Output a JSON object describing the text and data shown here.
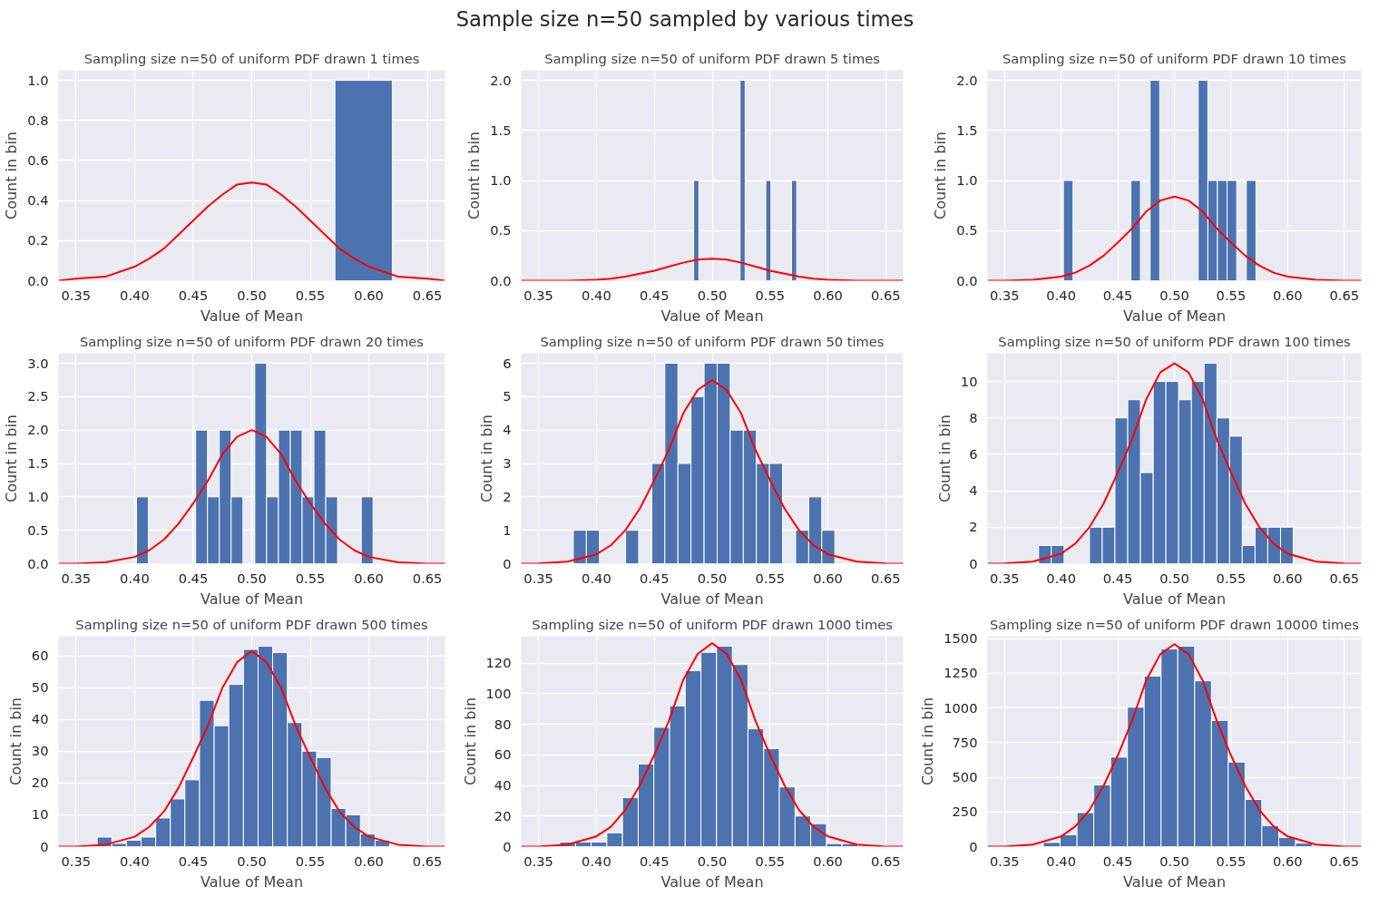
{
  "chart_data": [
    {
      "type": "other",
      "title": "Sample size n=50 sampled by various times"
    },
    {
      "type": "histogram",
      "title": "Sampling size n=50 of uniform PDF drawn 1 times",
      "xlabel": "Value of Mean",
      "ylabel": "Count in bin",
      "xlim": [
        0.335,
        0.665
      ],
      "ylim": [
        0,
        1.05
      ],
      "xticks": [
        {
          "value": 0.35,
          "label": "0.35"
        },
        {
          "value": 0.4,
          "label": "0.40"
        },
        {
          "value": 0.45,
          "label": "0.45"
        },
        {
          "value": 0.5,
          "label": "0.50"
        },
        {
          "value": 0.55,
          "label": "0.55"
        },
        {
          "value": 0.6,
          "label": "0.60"
        },
        {
          "value": 0.65,
          "label": "0.65"
        }
      ],
      "yticks": [
        {
          "value": 0,
          "label": "0.0"
        },
        {
          "value": 0.2,
          "label": "0.2"
        },
        {
          "value": 0.4,
          "label": "0.4"
        },
        {
          "value": 0.6,
          "label": "0.6"
        },
        {
          "value": 0.8,
          "label": "0.8"
        },
        {
          "value": 1,
          "label": "1.0"
        }
      ],
      "grid": true,
      "bins": [
        0.571,
        0.62
      ],
      "series": [
        {
          "type": "histogram",
          "color": "#4c72b0",
          "values": [
            1
          ]
        },
        {
          "type": "line",
          "color": "#ff0000",
          "x": [
            0.335,
            0.35,
            0.375,
            0.4,
            0.4125,
            0.425,
            0.4375,
            0.45,
            0.4625,
            0.475,
            0.4875,
            0.5,
            0.5125,
            0.525,
            0.5375,
            0.55,
            0.5625,
            0.575,
            0.5875,
            0.6,
            0.625,
            0.65,
            0.665
          ],
          "values": [
            0,
            0.01,
            0.02,
            0.07,
            0.11,
            0.16,
            0.23,
            0.3,
            0.37,
            0.43,
            0.48,
            0.49,
            0.48,
            0.43,
            0.37,
            0.3,
            0.23,
            0.16,
            0.11,
            0.07,
            0.02,
            0.01,
            0
          ]
        }
      ]
    },
    {
      "type": "histogram",
      "title": "Sampling size n=50 of uniform PDF drawn 5 times",
      "xlabel": "Value of Mean",
      "ylabel": "Count in bin",
      "xlim": [
        0.335,
        0.665
      ],
      "ylim": [
        0,
        2.1
      ],
      "xticks": [
        {
          "value": 0.35,
          "label": "0.35"
        },
        {
          "value": 0.4,
          "label": "0.40"
        },
        {
          "value": 0.45,
          "label": "0.45"
        },
        {
          "value": 0.5,
          "label": "0.50"
        },
        {
          "value": 0.55,
          "label": "0.55"
        },
        {
          "value": 0.6,
          "label": "0.60"
        },
        {
          "value": 0.65,
          "label": "0.65"
        }
      ],
      "yticks": [
        {
          "value": 0,
          "label": "0.0"
        },
        {
          "value": 0.5,
          "label": "0.5"
        },
        {
          "value": 1,
          "label": "1.0"
        },
        {
          "value": 1.5,
          "label": "1.5"
        },
        {
          "value": 2,
          "label": "2.0"
        }
      ],
      "grid": true,
      "bins": [
        0.484,
        0.4885,
        0.4929,
        0.4974,
        0.5018,
        0.5063,
        0.5107,
        0.5152,
        0.5196,
        0.5241,
        0.5285,
        0.533,
        0.5374,
        0.5419,
        0.5463,
        0.5508,
        0.5552,
        0.5597,
        0.5641,
        0.5686,
        0.573
      ],
      "series": [
        {
          "type": "histogram",
          "color": "#4c72b0",
          "values": [
            1,
            0,
            0,
            0,
            0,
            0,
            0,
            0,
            0,
            2,
            0,
            0,
            0,
            0,
            1,
            0,
            0,
            0,
            0,
            1
          ]
        },
        {
          "type": "line",
          "color": "#ff0000",
          "x": [
            0.335,
            0.35,
            0.375,
            0.4,
            0.4125,
            0.425,
            0.4375,
            0.45,
            0.4625,
            0.475,
            0.4875,
            0.5,
            0.5125,
            0.525,
            0.5375,
            0.55,
            0.5625,
            0.575,
            0.5875,
            0.6,
            0.625,
            0.65,
            0.665
          ],
          "values": [
            0,
            0,
            0,
            0.01,
            0.02,
            0.04,
            0.07,
            0.1,
            0.14,
            0.18,
            0.21,
            0.22,
            0.21,
            0.18,
            0.14,
            0.1,
            0.07,
            0.04,
            0.02,
            0.01,
            0,
            0,
            0
          ]
        }
      ]
    },
    {
      "type": "histogram",
      "title": "Sampling size n=50 of uniform PDF drawn 10 times",
      "xlabel": "Value of Mean",
      "ylabel": "Count in bin",
      "xlim": [
        0.335,
        0.665
      ],
      "ylim": [
        0,
        2.1
      ],
      "xticks": [
        {
          "value": 0.35,
          "label": "0.35"
        },
        {
          "value": 0.4,
          "label": "0.40"
        },
        {
          "value": 0.45,
          "label": "0.45"
        },
        {
          "value": 0.5,
          "label": "0.50"
        },
        {
          "value": 0.55,
          "label": "0.55"
        },
        {
          "value": 0.6,
          "label": "0.60"
        },
        {
          "value": 0.65,
          "label": "0.65"
        }
      ],
      "yticks": [
        {
          "value": 0,
          "label": "0.0"
        },
        {
          "value": 0.5,
          "label": "0.5"
        },
        {
          "value": 1,
          "label": "1.0"
        },
        {
          "value": 1.5,
          "label": "1.5"
        },
        {
          "value": 2,
          "label": "2.0"
        }
      ],
      "grid": true,
      "bins": [
        0.402,
        0.4105,
        0.419,
        0.4275,
        0.436,
        0.4445,
        0.453,
        0.4615,
        0.47,
        0.4785,
        0.487,
        0.4955,
        0.504,
        0.5125,
        0.521,
        0.5295,
        0.538,
        0.5465,
        0.555,
        0.5635,
        0.572
      ],
      "series": [
        {
          "type": "histogram",
          "color": "#4c72b0",
          "values": [
            1,
            0,
            0,
            0,
            0,
            0,
            0,
            1,
            0,
            2,
            0,
            0,
            0,
            0,
            2,
            1,
            1,
            1,
            0,
            1
          ]
        },
        {
          "type": "line",
          "color": "#ff0000",
          "x": [
            0.335,
            0.35,
            0.375,
            0.4,
            0.4125,
            0.425,
            0.4375,
            0.45,
            0.4625,
            0.475,
            0.4875,
            0.5,
            0.5125,
            0.525,
            0.5375,
            0.55,
            0.5625,
            0.575,
            0.5875,
            0.6,
            0.625,
            0.65,
            0.665
          ],
          "values": [
            0,
            0,
            0.01,
            0.04,
            0.08,
            0.15,
            0.25,
            0.38,
            0.52,
            0.69,
            0.8,
            0.84,
            0.8,
            0.69,
            0.52,
            0.38,
            0.25,
            0.15,
            0.08,
            0.04,
            0.01,
            0,
            0
          ]
        }
      ]
    },
    {
      "type": "histogram",
      "title": "Sampling size n=50 of uniform PDF drawn 20 times",
      "xlabel": "Value of Mean",
      "ylabel": "Count in bin",
      "xlim": [
        0.335,
        0.665
      ],
      "ylim": [
        0,
        3.15
      ],
      "xticks": [
        {
          "value": 0.35,
          "label": "0.35"
        },
        {
          "value": 0.4,
          "label": "0.40"
        },
        {
          "value": 0.45,
          "label": "0.45"
        },
        {
          "value": 0.5,
          "label": "0.50"
        },
        {
          "value": 0.55,
          "label": "0.55"
        },
        {
          "value": 0.6,
          "label": "0.60"
        },
        {
          "value": 0.65,
          "label": "0.65"
        }
      ],
      "yticks": [
        {
          "value": 0,
          "label": "0.0"
        },
        {
          "value": 0.5,
          "label": "0.5"
        },
        {
          "value": 1,
          "label": "1.0"
        },
        {
          "value": 1.5,
          "label": "1.5"
        },
        {
          "value": 2,
          "label": "2.0"
        },
        {
          "value": 2.5,
          "label": "2.5"
        },
        {
          "value": 3,
          "label": "3.0"
        }
      ],
      "grid": true,
      "bins": [
        0.4016,
        0.4117,
        0.4218,
        0.4319,
        0.442,
        0.4521,
        0.4622,
        0.4723,
        0.4824,
        0.4925,
        0.5026,
        0.5127,
        0.5228,
        0.5329,
        0.543,
        0.5531,
        0.5632,
        0.5733,
        0.5834,
        0.5935,
        0.6036
      ],
      "series": [
        {
          "type": "histogram",
          "color": "#4c72b0",
          "values": [
            1,
            0,
            0,
            0,
            0,
            2,
            1,
            2,
            1,
            0,
            3,
            1,
            2,
            2,
            1,
            2,
            1,
            0,
            0,
            1
          ]
        },
        {
          "type": "line",
          "color": "#ff0000",
          "x": [
            0.335,
            0.35,
            0.375,
            0.4,
            0.4125,
            0.425,
            0.4375,
            0.45,
            0.4625,
            0.475,
            0.4875,
            0.5,
            0.5125,
            0.525,
            0.5375,
            0.55,
            0.5625,
            0.575,
            0.5875,
            0.6,
            0.625,
            0.65,
            0.665
          ],
          "values": [
            0,
            0,
            0.02,
            0.1,
            0.2,
            0.36,
            0.6,
            0.9,
            1.24,
            1.64,
            1.9,
            2.0,
            1.9,
            1.64,
            1.24,
            0.9,
            0.6,
            0.36,
            0.2,
            0.1,
            0.02,
            0,
            0
          ]
        }
      ]
    },
    {
      "type": "histogram",
      "title": "Sampling size n=50 of uniform PDF drawn 50 times",
      "xlabel": "Value of Mean",
      "ylabel": "Count in bin",
      "xlim": [
        0.335,
        0.665
      ],
      "ylim": [
        0,
        6.3
      ],
      "xticks": [
        {
          "value": 0.35,
          "label": "0.35"
        },
        {
          "value": 0.4,
          "label": "0.40"
        },
        {
          "value": 0.45,
          "label": "0.45"
        },
        {
          "value": 0.5,
          "label": "0.50"
        },
        {
          "value": 0.55,
          "label": "0.55"
        },
        {
          "value": 0.6,
          "label": "0.60"
        },
        {
          "value": 0.65,
          "label": "0.65"
        }
      ],
      "yticks": [
        0,
        1,
        2,
        3,
        4,
        5,
        6
      ],
      "grid": true,
      "bins": [
        0.38,
        0.3913,
        0.4026,
        0.4139,
        0.4252,
        0.4365,
        0.4478,
        0.4591,
        0.4704,
        0.4817,
        0.493,
        0.5043,
        0.5156,
        0.5269,
        0.5382,
        0.5495,
        0.5608,
        0.5721,
        0.5834,
        0.5947,
        0.606
      ],
      "series": [
        {
          "type": "histogram",
          "color": "#4c72b0",
          "values": [
            1,
            1,
            0,
            0,
            1,
            0,
            3,
            6,
            3,
            5,
            6,
            6,
            4,
            4,
            3,
            3,
            0,
            1,
            2,
            1
          ]
        },
        {
          "type": "line",
          "color": "#ff0000",
          "x": [
            0.335,
            0.35,
            0.375,
            0.4,
            0.4125,
            0.425,
            0.4375,
            0.45,
            0.4625,
            0.475,
            0.4875,
            0.5,
            0.5125,
            0.525,
            0.5375,
            0.55,
            0.5625,
            0.575,
            0.5875,
            0.6,
            0.625,
            0.65,
            0.665
          ],
          "values": [
            0,
            0.01,
            0.06,
            0.28,
            0.55,
            1.0,
            1.65,
            2.5,
            3.4,
            4.5,
            5.2,
            5.5,
            5.2,
            4.5,
            3.4,
            2.5,
            1.65,
            1.0,
            0.55,
            0.28,
            0.06,
            0.01,
            0
          ]
        }
      ]
    },
    {
      "type": "histogram",
      "title": "Sampling size n=50 of uniform PDF drawn 100 times",
      "xlabel": "Value of Mean",
      "ylabel": "Count in bin",
      "xlim": [
        0.335,
        0.665
      ],
      "ylim": [
        0,
        11.55
      ],
      "xticks": [
        {
          "value": 0.35,
          "label": "0.35"
        },
        {
          "value": 0.4,
          "label": "0.40"
        },
        {
          "value": 0.45,
          "label": "0.45"
        },
        {
          "value": 0.5,
          "label": "0.50"
        },
        {
          "value": 0.55,
          "label": "0.55"
        },
        {
          "value": 0.6,
          "label": "0.60"
        },
        {
          "value": 0.65,
          "label": "0.65"
        }
      ],
      "yticks": [
        0,
        2,
        4,
        6,
        8,
        10
      ],
      "grid": true,
      "bins": [
        0.3801,
        0.3913,
        0.4026,
        0.4138,
        0.425,
        0.4363,
        0.4475,
        0.4588,
        0.47,
        0.4813,
        0.4925,
        0.5037,
        0.515,
        0.5262,
        0.5375,
        0.5487,
        0.5599,
        0.5712,
        0.5824,
        0.5937,
        0.6049
      ],
      "series": [
        {
          "type": "histogram",
          "color": "#4c72b0",
          "values": [
            1,
            1,
            0,
            0,
            2,
            2,
            8,
            9,
            5,
            10,
            10,
            9,
            10,
            11,
            8,
            7,
            1,
            2,
            2,
            2
          ]
        },
        {
          "type": "line",
          "color": "#ff0000",
          "x": [
            0.335,
            0.35,
            0.375,
            0.4,
            0.4125,
            0.425,
            0.4375,
            0.45,
            0.4625,
            0.475,
            0.4875,
            0.5,
            0.5125,
            0.525,
            0.5375,
            0.55,
            0.5625,
            0.575,
            0.5875,
            0.6,
            0.625,
            0.65,
            0.665
          ],
          "values": [
            0,
            0.01,
            0.11,
            0.55,
            1.1,
            2.0,
            3.3,
            5.0,
            6.8,
            9.0,
            10.5,
            11.0,
            10.5,
            9.0,
            6.8,
            5.0,
            3.3,
            2.0,
            1.1,
            0.55,
            0.11,
            0.01,
            0
          ]
        }
      ]
    },
    {
      "type": "histogram",
      "title": "Sampling size n=50 of uniform PDF drawn 500 times",
      "xlabel": "Value of Mean",
      "ylabel": "Count in bin",
      "xlim": [
        0.335,
        0.665
      ],
      "ylim": [
        0,
        66.15
      ],
      "xticks": [
        {
          "value": 0.35,
          "label": "0.35"
        },
        {
          "value": 0.4,
          "label": "0.40"
        },
        {
          "value": 0.45,
          "label": "0.45"
        },
        {
          "value": 0.5,
          "label": "0.50"
        },
        {
          "value": 0.55,
          "label": "0.55"
        },
        {
          "value": 0.6,
          "label": "0.60"
        },
        {
          "value": 0.65,
          "label": "0.65"
        }
      ],
      "yticks": [
        0,
        10,
        20,
        30,
        40,
        50,
        60
      ],
      "grid": true,
      "bins": [
        0.368,
        0.3805,
        0.393,
        0.4055,
        0.418,
        0.4305,
        0.4429,
        0.4554,
        0.4679,
        0.4804,
        0.4929,
        0.5054,
        0.5179,
        0.5304,
        0.5429,
        0.5554,
        0.5678,
        0.5803,
        0.5928,
        0.6053,
        0.6178
      ],
      "series": [
        {
          "type": "histogram",
          "color": "#4c72b0",
          "values": [
            3,
            1,
            2,
            3,
            9,
            15,
            21,
            46,
            38,
            51,
            62,
            63,
            61,
            39,
            30,
            28,
            12,
            10,
            4,
            2
          ]
        },
        {
          "type": "line",
          "color": "#ff0000",
          "x": [
            0.335,
            0.35,
            0.375,
            0.4,
            0.4125,
            0.425,
            0.4375,
            0.45,
            0.4625,
            0.475,
            0.4875,
            0.5,
            0.5125,
            0.525,
            0.5375,
            0.55,
            0.5625,
            0.575,
            0.5875,
            0.6,
            0.625,
            0.65,
            0.665
          ],
          "values": [
            0,
            0,
            0.6,
            3.1,
            6.2,
            11,
            18.5,
            28,
            38,
            50,
            58,
            61.5,
            58,
            50,
            38,
            28,
            18.5,
            11,
            6.2,
            3.1,
            0.6,
            0,
            0
          ]
        }
      ]
    },
    {
      "type": "histogram",
      "title": "Sampling size n=50 of uniform PDF drawn 1000 times",
      "xlabel": "Value of Mean",
      "ylabel": "Count in bin",
      "xlim": [
        0.335,
        0.665
      ],
      "ylim": [
        0,
        137.55
      ],
      "xticks": [
        {
          "value": 0.35,
          "label": "0.35"
        },
        {
          "value": 0.4,
          "label": "0.40"
        },
        {
          "value": 0.45,
          "label": "0.45"
        },
        {
          "value": 0.5,
          "label": "0.50"
        },
        {
          "value": 0.55,
          "label": "0.55"
        },
        {
          "value": 0.6,
          "label": "0.60"
        },
        {
          "value": 0.65,
          "label": "0.65"
        }
      ],
      "yticks": [
        0,
        20,
        40,
        60,
        80,
        100,
        120
      ],
      "grid": true,
      "bins": [
        0.3683,
        0.3819,
        0.3954,
        0.409,
        0.4225,
        0.4361,
        0.4496,
        0.4632,
        0.4767,
        0.4903,
        0.5038,
        0.5174,
        0.5309,
        0.5445,
        0.558,
        0.5716,
        0.5851,
        0.5987,
        0.6122,
        0.6258
      ],
      "series": [
        {
          "type": "histogram",
          "color": "#4c72b0",
          "values": [
            3,
            3,
            3,
            9,
            32,
            54,
            78,
            92,
            115,
            127,
            131,
            119,
            77,
            64,
            39,
            20,
            15,
            2,
            2
          ]
        },
        {
          "type": "line",
          "color": "#ff0000",
          "x": [
            0.335,
            0.35,
            0.375,
            0.4,
            0.4125,
            0.425,
            0.4375,
            0.45,
            0.4625,
            0.475,
            0.4875,
            0.5,
            0.5125,
            0.525,
            0.5375,
            0.55,
            0.5625,
            0.575,
            0.5875,
            0.6,
            0.625,
            0.65,
            0.665
          ],
          "values": [
            0,
            0,
            1.3,
            6.7,
            13,
            24,
            40,
            60,
            82,
            109,
            126,
            133,
            126,
            109,
            82,
            60,
            40,
            24,
            13,
            6.7,
            1.3,
            0,
            0
          ]
        }
      ]
    },
    {
      "type": "histogram",
      "title": "Sampling size n=50 of uniform PDF drawn 10000 times",
      "xlabel": "Value of Mean",
      "ylabel": "Count in bin",
      "xlim": [
        0.335,
        0.665
      ],
      "ylim": [
        0,
        1517
      ],
      "xticks": [
        {
          "value": 0.35,
          "label": "0.35"
        },
        {
          "value": 0.4,
          "label": "0.40"
        },
        {
          "value": 0.45,
          "label": "0.45"
        },
        {
          "value": 0.5,
          "label": "0.50"
        },
        {
          "value": 0.55,
          "label": "0.55"
        },
        {
          "value": 0.6,
          "label": "0.60"
        },
        {
          "value": 0.65,
          "label": "0.65"
        }
      ],
      "yticks": [
        0,
        250,
        500,
        750,
        1000,
        1250,
        1500
      ],
      "grid": true,
      "bins": [
        0.3843,
        0.3991,
        0.414,
        0.4288,
        0.4437,
        0.4585,
        0.4733,
        0.4882,
        0.503,
        0.5179,
        0.5327,
        0.5475,
        0.5624,
        0.5772,
        0.5921,
        0.6069,
        0.6217
      ],
      "series": [
        {
          "type": "histogram",
          "color": "#4c72b0",
          "values": [
            30,
            85,
            245,
            445,
            645,
            1005,
            1230,
            1425,
            1445,
            1195,
            910,
            610,
            340,
            150,
            65,
            25
          ]
        },
        {
          "type": "line",
          "color": "#ff0000",
          "x": [
            0.335,
            0.35,
            0.375,
            0.4,
            0.4125,
            0.425,
            0.4375,
            0.45,
            0.4625,
            0.475,
            0.4875,
            0.5,
            0.5125,
            0.525,
            0.5375,
            0.55,
            0.5625,
            0.575,
            0.5875,
            0.6,
            0.625,
            0.65,
            0.665
          ],
          "values": [
            0,
            0,
            15,
            73,
            146,
            263,
            438,
            657,
            905,
            1197,
            1387,
            1460,
            1387,
            1197,
            905,
            657,
            438,
            263,
            146,
            73,
            15,
            0,
            0
          ]
        }
      ]
    }
  ]
}
